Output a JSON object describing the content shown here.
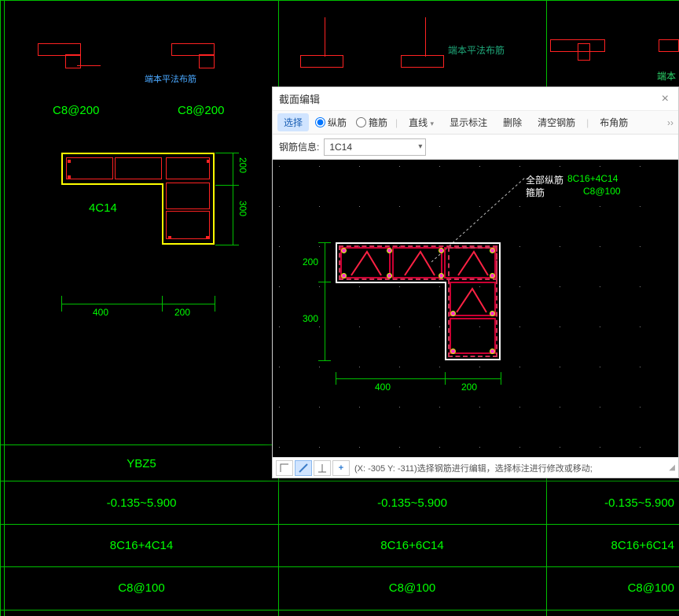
{
  "cad": {
    "label_left1": "C8@200",
    "label_left2": "C8@200",
    "section_label": "4C14",
    "blue_text": "端本平法布筋",
    "dims": {
      "w1": "400",
      "w2": "200",
      "h1": "200",
      "h2": "300"
    },
    "table": {
      "row1": [
        "YBZ5",
        "",
        ""
      ],
      "row2": [
        "-0.135~5.900",
        "-0.135~5.900",
        "-0.135~5.900"
      ],
      "row3": [
        "8C16+4C14",
        "8C16+6C14",
        "8C16+6C14"
      ],
      "row4": [
        "C8@100",
        "C8@100",
        "C8@100"
      ]
    },
    "colors": {
      "green": "#00ff00",
      "darkgreen": "#00c000",
      "yellow": "#ffff00",
      "red": "#ff2222"
    }
  },
  "dialog": {
    "title": "截面编辑",
    "toolbar": {
      "select": "选择",
      "radio1": "纵筋",
      "radio2": "箍筋",
      "line": "直线",
      "showAnnot": "显示标注",
      "delete": "删除",
      "clearBar": "清空钢筋",
      "cornerBar": "布角筋"
    },
    "info": {
      "label": "钢筋信息:",
      "value": "1C14"
    },
    "editor": {
      "dims": {
        "h1": "200",
        "h2": "300",
        "w1": "400",
        "w2": "200"
      },
      "legend_title": "全部纵筋",
      "legend_sub": "箍筋",
      "legend_val1": "8C16+4C14",
      "legend_val2": "C8@100",
      "grid_spacing": 51
    },
    "status": {
      "coords": "(X: -305 Y: -311)选择钢筋进行编辑，选择标注进行修改或移动;"
    }
  }
}
